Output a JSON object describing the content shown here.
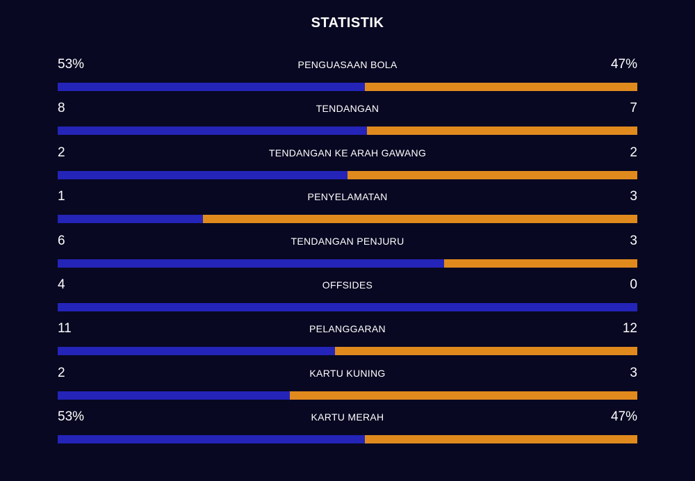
{
  "title": "STATISTIK",
  "colors": {
    "background": "#080822",
    "home": "#2424b8",
    "away": "#e08a1e"
  },
  "stats": [
    {
      "label": "PENGUASAAN BOLA",
      "home": "53%",
      "away": "47%",
      "home_share": 0.53
    },
    {
      "label": "TENDANGAN",
      "home": "8",
      "away": "7",
      "home_share": 0.533
    },
    {
      "label": "TENDANGAN KE ARAH GAWANG",
      "home": "2",
      "away": "2",
      "home_share": 0.5
    },
    {
      "label": "PENYELAMATAN",
      "home": "1",
      "away": "3",
      "home_share": 0.25
    },
    {
      "label": "TENDANGAN PENJURU",
      "home": "6",
      "away": "3",
      "home_share": 0.667
    },
    {
      "label": "OFFSIDES",
      "home": "4",
      "away": "0",
      "home_share": 1.0
    },
    {
      "label": "PELANGGARAN",
      "home": "11",
      "away": "12",
      "home_share": 0.478
    },
    {
      "label": "KARTU KUNING",
      "home": "2",
      "away": "3",
      "home_share": 0.4
    },
    {
      "label": "KARTU MERAH",
      "home": "53%",
      "away": "47%",
      "home_share": 0.53
    }
  ]
}
